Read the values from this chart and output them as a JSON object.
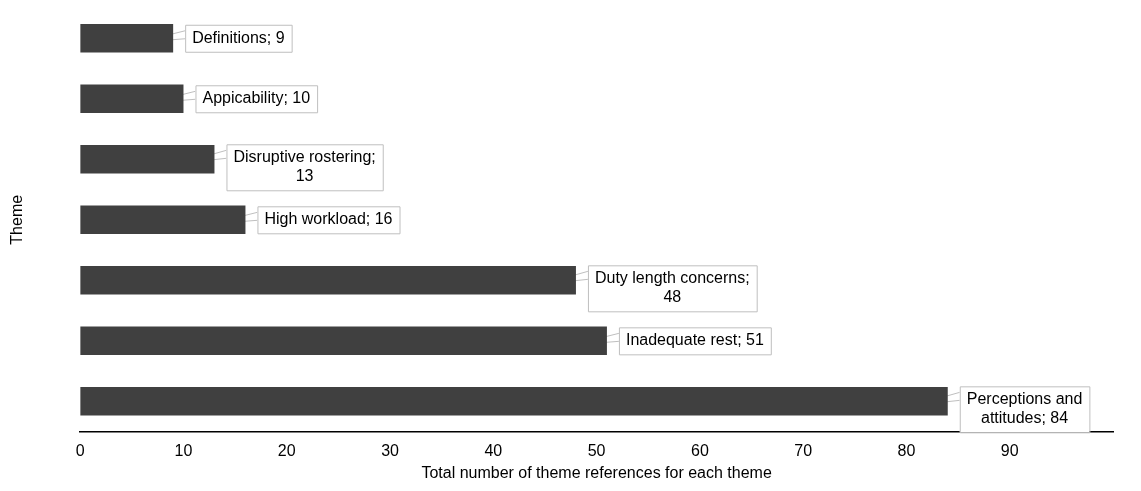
{
  "chart_data": {
    "type": "bar",
    "orientation": "horizontal",
    "xlabel": "Total number of theme references for each theme",
    "ylabel": "Theme",
    "categories": [
      null,
      null,
      null,
      null,
      null,
      null,
      null
    ],
    "values": [
      9,
      10,
      13,
      16,
      48,
      51,
      84
    ],
    "color": "#404040",
    "value_labels": [
      "Definitions; 9",
      "Appicability; 10",
      "Disruptive rostering; 13",
      "High workload; 16",
      "Duty length concerns; 48",
      "Inadequate rest; 51",
      "Perceptions and attitudes; 84"
    ],
    "xlim": [
      0,
      100
    ],
    "xticks": [
      0,
      10,
      20,
      30,
      40,
      50,
      60,
      70,
      80,
      90
    ],
    "tick_labels": "x",
    "grid": false
  }
}
